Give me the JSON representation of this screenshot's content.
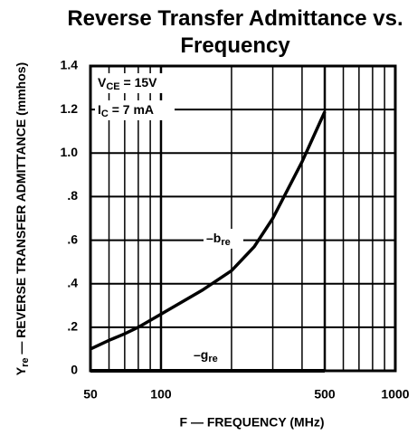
{
  "chart_data": {
    "type": "line",
    "title": "Reverse Transfer Admittance vs. Frequency",
    "xlabel": "F — FREQUENCY (MHz)",
    "ylabel": {
      "text": "Y",
      "sub": "re",
      "after": " — REVERSE TRANSFER ADMITTANCE (mmhos)"
    },
    "annotations": [
      {
        "text": "V",
        "sub": "CE",
        "after": " = 15V"
      },
      {
        "text": "I",
        "sub": "C",
        "after": " = 7 mA"
      },
      {
        "text": "–b",
        "sub": "re",
        "after": ""
      },
      {
        "text": "–g",
        "sub": "re",
        "after": ""
      }
    ],
    "log_x": true,
    "grid": true,
    "x": [
      50,
      60,
      70,
      80,
      100,
      150,
      200,
      250,
      300,
      400,
      500
    ],
    "series": [
      {
        "color": "#000000",
        "values": [
          0.1,
          0.14,
          0.17,
          0.2,
          0.26,
          0.37,
          0.46,
          0.57,
          0.7,
          0.96,
          1.19
        ]
      },
      {
        "color": "#000000",
        "values": [
          0,
          0,
          0,
          0,
          0,
          0,
          0,
          0,
          0,
          0,
          0
        ]
      }
    ],
    "xlim": [
      50,
      1000
    ],
    "xticks": [
      50,
      100,
      500,
      1000
    ],
    "xgrid": [
      60,
      70,
      80,
      90,
      200,
      300,
      400,
      600,
      700,
      800,
      900
    ],
    "ylim": [
      0,
      1.4
    ],
    "yticks": [
      0,
      {
        "value": 0.2,
        "label": ".2"
      },
      {
        "value": 0.4,
        "label": ".4"
      },
      {
        "value": 0.6,
        "label": ".6"
      },
      {
        "value": 0.8,
        "label": ".8"
      },
      {
        "value": 1.0,
        "label": "1.0"
      },
      1.2,
      1.4
    ]
  }
}
